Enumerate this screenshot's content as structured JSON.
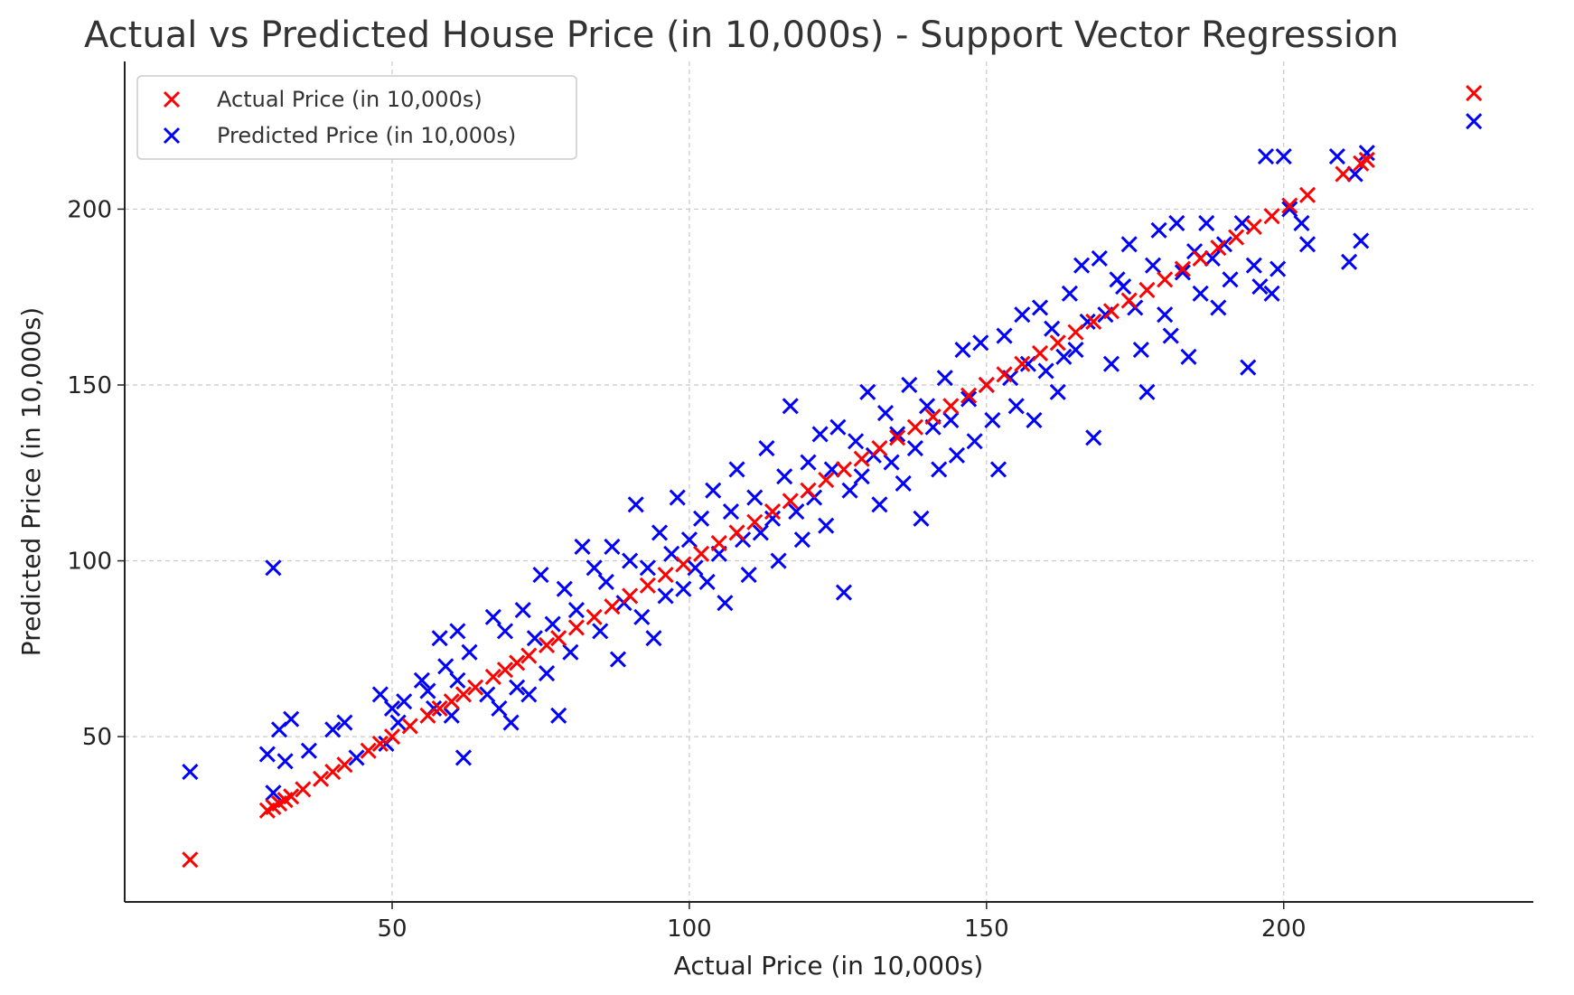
{
  "chart_data": {
    "type": "scatter",
    "title": "Actual vs Predicted House Price (in 10,000s) - Support Vector Regression",
    "xlabel": "Actual Price (in 10,000s)",
    "ylabel": "Predicted Price (in 10,000s)",
    "xlim": [
      5,
      242
    ],
    "ylim": [
      3,
      242
    ],
    "xticks": [
      50,
      100,
      150,
      200
    ],
    "yticks": [
      50,
      100,
      150,
      200
    ],
    "xtick_labels": [
      "50",
      "100",
      "150",
      "200"
    ],
    "ytick_labels": [
      "50",
      "100",
      "150",
      "200"
    ],
    "grid": true,
    "legend_position": "top-left",
    "marker": "x",
    "series": [
      {
        "name": "Actual Price (in 10,000s)",
        "color": "#ff0000",
        "points": [
          [
            16,
            15
          ],
          [
            29,
            29
          ],
          [
            30,
            30
          ],
          [
            31,
            31
          ],
          [
            32,
            32
          ],
          [
            33,
            33
          ],
          [
            35,
            35
          ],
          [
            38,
            38
          ],
          [
            40,
            40
          ],
          [
            42,
            42
          ],
          [
            46,
            46
          ],
          [
            48,
            48
          ],
          [
            50,
            50
          ],
          [
            53,
            53
          ],
          [
            56,
            56
          ],
          [
            58,
            58
          ],
          [
            60,
            60
          ],
          [
            62,
            62
          ],
          [
            64,
            64
          ],
          [
            67,
            67
          ],
          [
            69,
            69
          ],
          [
            71,
            71
          ],
          [
            73,
            73
          ],
          [
            76,
            76
          ],
          [
            78,
            78
          ],
          [
            81,
            81
          ],
          [
            84,
            84
          ],
          [
            87,
            87
          ],
          [
            90,
            90
          ],
          [
            93,
            93
          ],
          [
            96,
            96
          ],
          [
            99,
            99
          ],
          [
            102,
            102
          ],
          [
            105,
            105
          ],
          [
            108,
            108
          ],
          [
            111,
            111
          ],
          [
            114,
            114
          ],
          [
            117,
            117
          ],
          [
            120,
            120
          ],
          [
            123,
            123
          ],
          [
            126,
            126
          ],
          [
            129,
            129
          ],
          [
            132,
            132
          ],
          [
            135,
            135
          ],
          [
            138,
            138
          ],
          [
            141,
            141
          ],
          [
            144,
            144
          ],
          [
            147,
            147
          ],
          [
            150,
            150
          ],
          [
            153,
            153
          ],
          [
            156,
            156
          ],
          [
            159,
            159
          ],
          [
            162,
            162
          ],
          [
            165,
            165
          ],
          [
            168,
            168
          ],
          [
            171,
            171
          ],
          [
            174,
            174
          ],
          [
            177,
            177
          ],
          [
            180,
            180
          ],
          [
            183,
            183
          ],
          [
            186,
            186
          ],
          [
            189,
            189
          ],
          [
            192,
            192
          ],
          [
            195,
            195
          ],
          [
            198,
            198
          ],
          [
            201,
            201
          ],
          [
            204,
            204
          ],
          [
            210,
            210
          ],
          [
            213,
            213
          ],
          [
            214,
            214
          ],
          [
            232,
            233
          ]
        ]
      },
      {
        "name": "Predicted Price (in 10,000s)",
        "color": "#0000ff",
        "points": [
          [
            16,
            40
          ],
          [
            29,
            45
          ],
          [
            30,
            34
          ],
          [
            30,
            98
          ],
          [
            31,
            52
          ],
          [
            32,
            43
          ],
          [
            33,
            55
          ],
          [
            36,
            46
          ],
          [
            40,
            52
          ],
          [
            42,
            54
          ],
          [
            44,
            44
          ],
          [
            48,
            62
          ],
          [
            49,
            48
          ],
          [
            50,
            58
          ],
          [
            51,
            54
          ],
          [
            52,
            60
          ],
          [
            55,
            66
          ],
          [
            56,
            63
          ],
          [
            57,
            58
          ],
          [
            58,
            78
          ],
          [
            59,
            70
          ],
          [
            60,
            56
          ],
          [
            61,
            66
          ],
          [
            61,
            80
          ],
          [
            62,
            44
          ],
          [
            63,
            74
          ],
          [
            66,
            62
          ],
          [
            67,
            84
          ],
          [
            68,
            58
          ],
          [
            69,
            80
          ],
          [
            70,
            54
          ],
          [
            71,
            64
          ],
          [
            72,
            86
          ],
          [
            73,
            62
          ],
          [
            74,
            78
          ],
          [
            75,
            96
          ],
          [
            76,
            68
          ],
          [
            77,
            82
          ],
          [
            78,
            56
          ],
          [
            79,
            92
          ],
          [
            80,
            74
          ],
          [
            81,
            86
          ],
          [
            82,
            104
          ],
          [
            84,
            98
          ],
          [
            85,
            80
          ],
          [
            86,
            94
          ],
          [
            87,
            104
          ],
          [
            88,
            72
          ],
          [
            89,
            88
          ],
          [
            90,
            100
          ],
          [
            91,
            116
          ],
          [
            92,
            84
          ],
          [
            93,
            98
          ],
          [
            94,
            78
          ],
          [
            95,
            108
          ],
          [
            96,
            90
          ],
          [
            97,
            102
          ],
          [
            98,
            118
          ],
          [
            99,
            92
          ],
          [
            100,
            106
          ],
          [
            101,
            98
          ],
          [
            102,
            112
          ],
          [
            103,
            94
          ],
          [
            104,
            120
          ],
          [
            105,
            102
          ],
          [
            106,
            88
          ],
          [
            107,
            114
          ],
          [
            108,
            126
          ],
          [
            109,
            106
          ],
          [
            110,
            96
          ],
          [
            111,
            118
          ],
          [
            112,
            108
          ],
          [
            113,
            132
          ],
          [
            114,
            112
          ],
          [
            115,
            100
          ],
          [
            116,
            124
          ],
          [
            117,
            144
          ],
          [
            118,
            114
          ],
          [
            119,
            106
          ],
          [
            120,
            128
          ],
          [
            121,
            118
          ],
          [
            122,
            136
          ],
          [
            123,
            110
          ],
          [
            124,
            126
          ],
          [
            125,
            138
          ],
          [
            126,
            91
          ],
          [
            127,
            120
          ],
          [
            128,
            134
          ],
          [
            129,
            124
          ],
          [
            130,
            148
          ],
          [
            131,
            130
          ],
          [
            132,
            116
          ],
          [
            133,
            142
          ],
          [
            134,
            128
          ],
          [
            135,
            136
          ],
          [
            136,
            122
          ],
          [
            137,
            150
          ],
          [
            138,
            132
          ],
          [
            139,
            112
          ],
          [
            140,
            144
          ],
          [
            141,
            138
          ],
          [
            142,
            126
          ],
          [
            143,
            152
          ],
          [
            144,
            140
          ],
          [
            145,
            130
          ],
          [
            146,
            160
          ],
          [
            147,
            146
          ],
          [
            148,
            134
          ],
          [
            149,
            162
          ],
          [
            150,
            150
          ],
          [
            151,
            140
          ],
          [
            152,
            126
          ],
          [
            153,
            164
          ],
          [
            154,
            152
          ],
          [
            155,
            144
          ],
          [
            156,
            170
          ],
          [
            157,
            156
          ],
          [
            158,
            140
          ],
          [
            159,
            172
          ],
          [
            160,
            154
          ],
          [
            161,
            166
          ],
          [
            162,
            148
          ],
          [
            163,
            158
          ],
          [
            164,
            176
          ],
          [
            165,
            160
          ],
          [
            166,
            184
          ],
          [
            167,
            168
          ],
          [
            168,
            135
          ],
          [
            169,
            186
          ],
          [
            170,
            170
          ],
          [
            171,
            156
          ],
          [
            172,
            180
          ],
          [
            173,
            178
          ],
          [
            174,
            190
          ],
          [
            175,
            172
          ],
          [
            176,
            160
          ],
          [
            177,
            148
          ],
          [
            178,
            184
          ],
          [
            179,
            194
          ],
          [
            180,
            170
          ],
          [
            181,
            164
          ],
          [
            182,
            196
          ],
          [
            183,
            182
          ],
          [
            184,
            158
          ],
          [
            185,
            188
          ],
          [
            186,
            176
          ],
          [
            187,
            196
          ],
          [
            188,
            186
          ],
          [
            189,
            172
          ],
          [
            190,
            190
          ],
          [
            191,
            180
          ],
          [
            193,
            196
          ],
          [
            194,
            155
          ],
          [
            195,
            184
          ],
          [
            196,
            178
          ],
          [
            197,
            215
          ],
          [
            198,
            176
          ],
          [
            199,
            183
          ],
          [
            200,
            215
          ],
          [
            201,
            200
          ],
          [
            203,
            196
          ],
          [
            204,
            190
          ],
          [
            209,
            215
          ],
          [
            211,
            185
          ],
          [
            212,
            210
          ],
          [
            213,
            191
          ],
          [
            214,
            216
          ],
          [
            232,
            225
          ]
        ]
      }
    ]
  }
}
